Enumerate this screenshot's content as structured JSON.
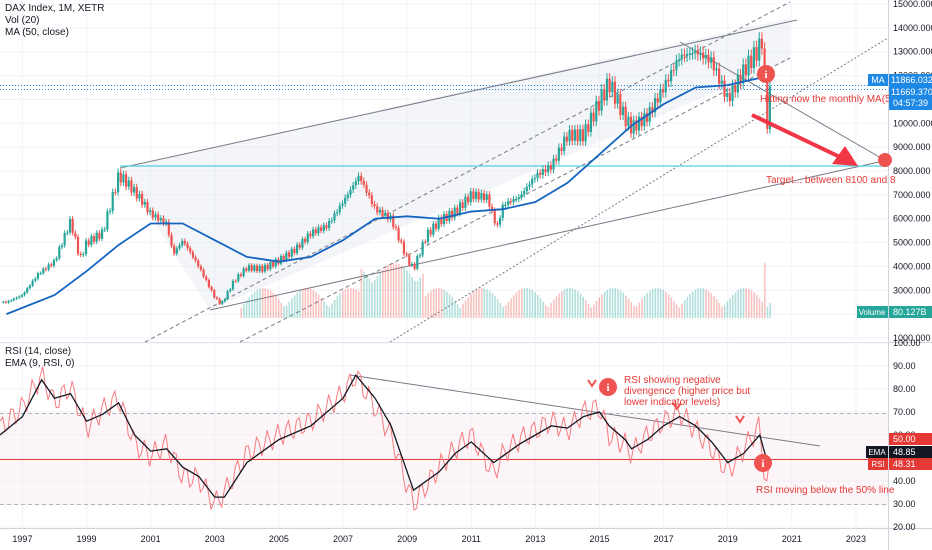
{
  "main_legend": {
    "symbol": "DAX Index, 1M, XETR",
    "vol": "Vol (20)",
    "ma": "MA (50, close)"
  },
  "rsi_legend": {
    "rsi": "RSI (14, close)",
    "ema": "EMA (9, RSI, 0)"
  },
  "price_axis": {
    "ticks": [
      "15000.000",
      "14000.000",
      "13000.000",
      "12000.000",
      "11000.000",
      "10000.000",
      "9000.000",
      "8000.000",
      "7000.000",
      "6000.000",
      "5000.000",
      "4000.000",
      "3000.000",
      "2000.000",
      "1000.000"
    ]
  },
  "rsi_axis": {
    "ticks": [
      "100.00",
      "90.00",
      "80.00",
      "70.00",
      "60.00",
      "50.00",
      "40.00",
      "30.00",
      "20.00"
    ]
  },
  "time_axis": {
    "labels": [
      "1997",
      "1999",
      "2001",
      "2003",
      "2005",
      "2007",
      "2009",
      "2011",
      "2013",
      "2015",
      "2017",
      "2019",
      "2021",
      "2023"
    ]
  },
  "price_labels": {
    "ma_tag": "MA",
    "ma_value": "11866.032",
    "last_value": "11669.370",
    "countdown": "04:57:39",
    "volume_tag": "Volume",
    "volume_value": "80.127B"
  },
  "rsi_labels": {
    "level_value": "50.00",
    "ema_tag": "EMA",
    "ema_value": "48.85",
    "rsi_tag": "RSI",
    "rsi_value": "48.31"
  },
  "annotations": {
    "ma_note": "Hitting now the monthly MA(5",
    "target_note": "Target... between 8100 and 8",
    "rsi_note_line1": "RSI showing negative",
    "rsi_note_line2": "divengence (higher price but",
    "rsi_note_line3": "lower indicator levels)",
    "rsi_below_note": "RSI moving below the 50% line"
  },
  "colors": {
    "up": "#26a69a",
    "down": "#ef5350",
    "ma": "#1565c0",
    "rsi": "#f77c80",
    "ema": "#131722",
    "annotation": "#e53935",
    "support": "#4dd0e1",
    "tag_blue": "#1e88e5",
    "volume": "#26a69a"
  },
  "chart_data": [
    {
      "type": "line",
      "title": "DAX Index, 1M, XETR",
      "ylabel": "",
      "xlabel": "",
      "ylim": [
        700,
        15500
      ],
      "xlim": [
        1996.3,
        2024.0
      ],
      "series": [
        {
          "name": "",
          "x": [
            1996.5,
            1997,
            1997.5,
            1998,
            1998.5,
            1998.8,
            1999,
            1999.5,
            2000,
            2000.2,
            2000.7,
            2001,
            2001.5,
            2001.7,
            2002,
            2002.5,
            2003,
            2003.2,
            2003.6,
            2004,
            2004.5,
            2005,
            2005.5,
            2006,
            2006.5,
            2007,
            2007.5,
            2008,
            2008.5,
            2009,
            2009.2,
            2009.6,
            2010,
            2010.5,
            2011,
            2011.5,
            2011.8,
            2012,
            2012.5,
            2013,
            2013.5,
            2014,
            2014.5,
            2015,
            2015.3,
            2015.8,
            2016,
            2016.5,
            2017,
            2017.5,
            2018,
            2018.5,
            2019,
            2019.5,
            2020,
            2020.1,
            2020.2,
            2020.35
          ],
          "values": [
            2500,
            2800,
            3700,
            4200,
            5900,
            4300,
            5000,
            5400,
            7800,
            7600,
            6800,
            6200,
            5800,
            4500,
            5100,
            4000,
            2700,
            2400,
            3400,
            3950,
            3900,
            4250,
            4700,
            5400,
            5700,
            6700,
            7800,
            6400,
            6000,
            4300,
            3900,
            5300,
            5900,
            6300,
            7000,
            6900,
            5600,
            6600,
            6900,
            7800,
            8200,
            9500,
            9500,
            10900,
            11700,
            10200,
            9800,
            10300,
            11500,
            12800,
            13000,
            12600,
            11000,
            12200,
            13200,
            13700,
            9600,
            11669
          ]
        },
        {
          "name": "",
          "x": [
            1996.5,
            1998,
            1999,
            2000,
            2001,
            2002,
            2003,
            2004,
            2005,
            2006,
            2007,
            2008,
            2009,
            2010,
            2011,
            2012,
            2013,
            2014,
            2015,
            2016,
            2017,
            2018,
            2019,
            2020,
            2020.35
          ],
          "values": [
            2000,
            2800,
            3800,
            4900,
            5800,
            5800,
            5100,
            4400,
            4200,
            4400,
            5100,
            6000,
            6100,
            6000,
            6300,
            6400,
            6700,
            7500,
            8700,
            9900,
            10800,
            11500,
            11600,
            11900,
            11866
          ]
        }
      ]
    },
    {
      "type": "line",
      "title": "RSI (14, close)",
      "ylabel": "",
      "xlabel": "",
      "ylim": [
        18,
        100
      ],
      "series": [
        {
          "name": "",
          "x": [
            1996.3,
            1997,
            1997.6,
            1998,
            1998.5,
            1999,
            1999.5,
            2000,
            2000.5,
            2001,
            2001.5,
            2002,
            2002.5,
            2003,
            2003.3,
            2004,
            2005,
            2006,
            2006.5,
            2007,
            2007.4,
            2008,
            2008.5,
            2009,
            2009.2,
            2010,
            2010.5,
            2011,
            2011.7,
            2012,
            2012.5,
            2013,
            2013.5,
            2014,
            2014.5,
            2015,
            2015.3,
            2015.8,
            2016,
            2016.5,
            2017,
            2017.5,
            2018,
            2018.5,
            2019,
            2019.5,
            2020,
            2020.2,
            2020.35
          ],
          "values": [
            63,
            72,
            86,
            74,
            81,
            63,
            71,
            76,
            56,
            51,
            56,
            42,
            41,
            30,
            35,
            52,
            60,
            66,
            72,
            78,
            86,
            72,
            60,
            38,
            30,
            46,
            54,
            60,
            43,
            52,
            58,
            62,
            66,
            62,
            70,
            72,
            60,
            56,
            52,
            60,
            66,
            70,
            62,
            54,
            44,
            54,
            64,
            36,
            48.31
          ]
        },
        {
          "name": "",
          "x": [
            1996.3,
            1997,
            1997.6,
            1998,
            1998.5,
            1999,
            1999.5,
            2000,
            2000.5,
            2001,
            2001.5,
            2002,
            2002.5,
            2003,
            2003.3,
            2004,
            2005,
            2006,
            2006.5,
            2007,
            2007.4,
            2008,
            2008.5,
            2009,
            2009.2,
            2010,
            2010.5,
            2011,
            2011.7,
            2012,
            2012.5,
            2013,
            2013.5,
            2014,
            2014.5,
            2015,
            2015.3,
            2015.8,
            2016,
            2016.5,
            2017,
            2017.5,
            2018,
            2018.5,
            2019,
            2019.5,
            2020,
            2020.2,
            2020.35
          ],
          "values": [
            60,
            68,
            84,
            76,
            78,
            66,
            69,
            74,
            60,
            53,
            54,
            46,
            42,
            33,
            33,
            48,
            58,
            64,
            70,
            76,
            86,
            76,
            64,
            44,
            36,
            44,
            52,
            57,
            48,
            51,
            56,
            60,
            64,
            63,
            68,
            70,
            64,
            58,
            54,
            58,
            64,
            68,
            64,
            57,
            48,
            52,
            60,
            50,
            48.85
          ]
        }
      ]
    }
  ]
}
